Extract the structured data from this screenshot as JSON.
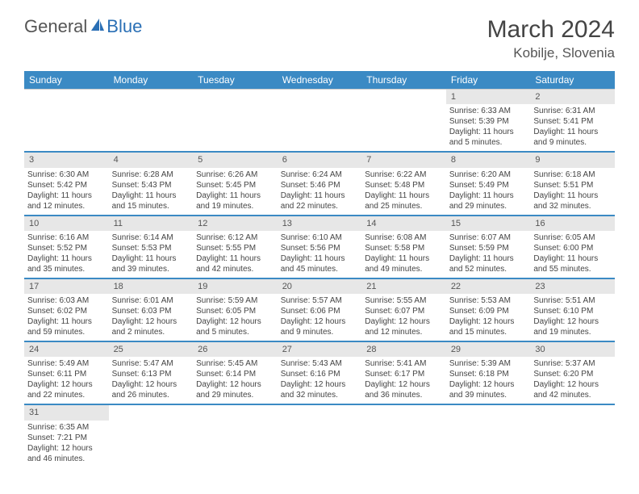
{
  "logo": {
    "general": "General",
    "blue": "Blue"
  },
  "title": "March 2024",
  "location": "Kobilje, Slovenia",
  "colors": {
    "header_bg": "#3b8ac4",
    "header_text": "#ffffff",
    "daynum_bg": "#e7e7e7",
    "row_divider": "#3b8ac4",
    "text": "#444444",
    "logo_blue": "#2a6fb5"
  },
  "days_of_week": [
    "Sunday",
    "Monday",
    "Tuesday",
    "Wednesday",
    "Thursday",
    "Friday",
    "Saturday"
  ],
  "weeks": [
    [
      null,
      null,
      null,
      null,
      null,
      {
        "n": "1",
        "sr": "Sunrise: 6:33 AM",
        "ss": "Sunset: 5:39 PM",
        "dl": "Daylight: 11 hours and 5 minutes."
      },
      {
        "n": "2",
        "sr": "Sunrise: 6:31 AM",
        "ss": "Sunset: 5:41 PM",
        "dl": "Daylight: 11 hours and 9 minutes."
      }
    ],
    [
      {
        "n": "3",
        "sr": "Sunrise: 6:30 AM",
        "ss": "Sunset: 5:42 PM",
        "dl": "Daylight: 11 hours and 12 minutes."
      },
      {
        "n": "4",
        "sr": "Sunrise: 6:28 AM",
        "ss": "Sunset: 5:43 PM",
        "dl": "Daylight: 11 hours and 15 minutes."
      },
      {
        "n": "5",
        "sr": "Sunrise: 6:26 AM",
        "ss": "Sunset: 5:45 PM",
        "dl": "Daylight: 11 hours and 19 minutes."
      },
      {
        "n": "6",
        "sr": "Sunrise: 6:24 AM",
        "ss": "Sunset: 5:46 PM",
        "dl": "Daylight: 11 hours and 22 minutes."
      },
      {
        "n": "7",
        "sr": "Sunrise: 6:22 AM",
        "ss": "Sunset: 5:48 PM",
        "dl": "Daylight: 11 hours and 25 minutes."
      },
      {
        "n": "8",
        "sr": "Sunrise: 6:20 AM",
        "ss": "Sunset: 5:49 PM",
        "dl": "Daylight: 11 hours and 29 minutes."
      },
      {
        "n": "9",
        "sr": "Sunrise: 6:18 AM",
        "ss": "Sunset: 5:51 PM",
        "dl": "Daylight: 11 hours and 32 minutes."
      }
    ],
    [
      {
        "n": "10",
        "sr": "Sunrise: 6:16 AM",
        "ss": "Sunset: 5:52 PM",
        "dl": "Daylight: 11 hours and 35 minutes."
      },
      {
        "n": "11",
        "sr": "Sunrise: 6:14 AM",
        "ss": "Sunset: 5:53 PM",
        "dl": "Daylight: 11 hours and 39 minutes."
      },
      {
        "n": "12",
        "sr": "Sunrise: 6:12 AM",
        "ss": "Sunset: 5:55 PM",
        "dl": "Daylight: 11 hours and 42 minutes."
      },
      {
        "n": "13",
        "sr": "Sunrise: 6:10 AM",
        "ss": "Sunset: 5:56 PM",
        "dl": "Daylight: 11 hours and 45 minutes."
      },
      {
        "n": "14",
        "sr": "Sunrise: 6:08 AM",
        "ss": "Sunset: 5:58 PM",
        "dl": "Daylight: 11 hours and 49 minutes."
      },
      {
        "n": "15",
        "sr": "Sunrise: 6:07 AM",
        "ss": "Sunset: 5:59 PM",
        "dl": "Daylight: 11 hours and 52 minutes."
      },
      {
        "n": "16",
        "sr": "Sunrise: 6:05 AM",
        "ss": "Sunset: 6:00 PM",
        "dl": "Daylight: 11 hours and 55 minutes."
      }
    ],
    [
      {
        "n": "17",
        "sr": "Sunrise: 6:03 AM",
        "ss": "Sunset: 6:02 PM",
        "dl": "Daylight: 11 hours and 59 minutes."
      },
      {
        "n": "18",
        "sr": "Sunrise: 6:01 AM",
        "ss": "Sunset: 6:03 PM",
        "dl": "Daylight: 12 hours and 2 minutes."
      },
      {
        "n": "19",
        "sr": "Sunrise: 5:59 AM",
        "ss": "Sunset: 6:05 PM",
        "dl": "Daylight: 12 hours and 5 minutes."
      },
      {
        "n": "20",
        "sr": "Sunrise: 5:57 AM",
        "ss": "Sunset: 6:06 PM",
        "dl": "Daylight: 12 hours and 9 minutes."
      },
      {
        "n": "21",
        "sr": "Sunrise: 5:55 AM",
        "ss": "Sunset: 6:07 PM",
        "dl": "Daylight: 12 hours and 12 minutes."
      },
      {
        "n": "22",
        "sr": "Sunrise: 5:53 AM",
        "ss": "Sunset: 6:09 PM",
        "dl": "Daylight: 12 hours and 15 minutes."
      },
      {
        "n": "23",
        "sr": "Sunrise: 5:51 AM",
        "ss": "Sunset: 6:10 PM",
        "dl": "Daylight: 12 hours and 19 minutes."
      }
    ],
    [
      {
        "n": "24",
        "sr": "Sunrise: 5:49 AM",
        "ss": "Sunset: 6:11 PM",
        "dl": "Daylight: 12 hours and 22 minutes."
      },
      {
        "n": "25",
        "sr": "Sunrise: 5:47 AM",
        "ss": "Sunset: 6:13 PM",
        "dl": "Daylight: 12 hours and 26 minutes."
      },
      {
        "n": "26",
        "sr": "Sunrise: 5:45 AM",
        "ss": "Sunset: 6:14 PM",
        "dl": "Daylight: 12 hours and 29 minutes."
      },
      {
        "n": "27",
        "sr": "Sunrise: 5:43 AM",
        "ss": "Sunset: 6:16 PM",
        "dl": "Daylight: 12 hours and 32 minutes."
      },
      {
        "n": "28",
        "sr": "Sunrise: 5:41 AM",
        "ss": "Sunset: 6:17 PM",
        "dl": "Daylight: 12 hours and 36 minutes."
      },
      {
        "n": "29",
        "sr": "Sunrise: 5:39 AM",
        "ss": "Sunset: 6:18 PM",
        "dl": "Daylight: 12 hours and 39 minutes."
      },
      {
        "n": "30",
        "sr": "Sunrise: 5:37 AM",
        "ss": "Sunset: 6:20 PM",
        "dl": "Daylight: 12 hours and 42 minutes."
      }
    ],
    [
      {
        "n": "31",
        "sr": "Sunrise: 6:35 AM",
        "ss": "Sunset: 7:21 PM",
        "dl": "Daylight: 12 hours and 46 minutes."
      },
      null,
      null,
      null,
      null,
      null,
      null
    ]
  ]
}
